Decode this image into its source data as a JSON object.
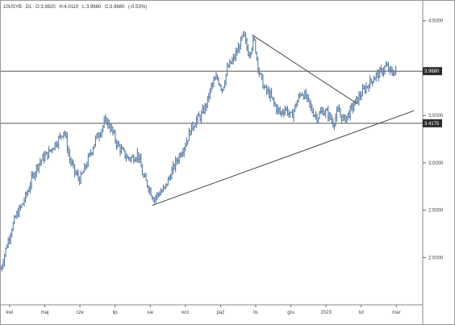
{
  "chart_data": {
    "type": "ohlc",
    "header": {
      "symbol": "10USYB",
      "timeframe": "D1",
      "open": "O:3.9820",
      "high": "H:4.0110",
      "low": "L:3.9680",
      "close": "C:3.9680",
      "change": "(-0.53%)"
    },
    "ylim": [
      1.5,
      4.6
    ],
    "y_ticks": [
      {
        "value": 4.5,
        "label": "4.5000"
      },
      {
        "value": 3.5,
        "label": "3.5000"
      },
      {
        "value": 3.0,
        "label": "3.0000"
      },
      {
        "value": 2.5,
        "label": "2.5000"
      },
      {
        "value": 2.0,
        "label": "2.0000"
      }
    ],
    "x_labels": [
      "kwi",
      "maj",
      "cze",
      "lip",
      "sie",
      "wrz",
      "paź",
      "lis",
      "gru",
      "2023",
      "lut",
      "mar"
    ],
    "x_label_positions": [
      0.5,
      2.5,
      4.5,
      6.5,
      8.5,
      10.5,
      12.5,
      14.5,
      16.5,
      18.5,
      20.5,
      22.5
    ],
    "x_range": [
      0,
      24
    ],
    "horizontal_levels": [
      {
        "value": 3.968,
        "label": "3.9680"
      },
      {
        "value": 3.4175,
        "label": "3.4175"
      }
    ],
    "trendlines": [
      {
        "from": [
          8.6,
          2.55
        ],
        "to": [
          23.5,
          3.55
        ]
      },
      {
        "from": [
          14.3,
          4.35
        ],
        "to": [
          20.3,
          3.62
        ]
      }
    ],
    "series_close": [
      [
        0,
        1.88
      ],
      [
        0.3,
        2.1
      ],
      [
        0.6,
        2.3
      ],
      [
        0.9,
        2.45
      ],
      [
        1.2,
        2.55
      ],
      [
        1.5,
        2.68
      ],
      [
        1.8,
        2.85
      ],
      [
        2.1,
        2.98
      ],
      [
        2.4,
        3.05
      ],
      [
        2.7,
        3.1
      ],
      [
        3.0,
        3.18
      ],
      [
        3.3,
        3.25
      ],
      [
        3.6,
        3.35
      ],
      [
        3.9,
        3.05
      ],
      [
        4.2,
        2.9
      ],
      [
        4.5,
        2.82
      ],
      [
        4.8,
        2.95
      ],
      [
        5.1,
        3.1
      ],
      [
        5.4,
        3.25
      ],
      [
        5.7,
        3.35
      ],
      [
        6.0,
        3.45
      ],
      [
        6.3,
        3.35
      ],
      [
        6.6,
        3.2
      ],
      [
        6.9,
        3.12
      ],
      [
        7.2,
        3.05
      ],
      [
        7.5,
        3.05
      ],
      [
        7.8,
        3.1
      ],
      [
        8.1,
        2.85
      ],
      [
        8.4,
        2.75
      ],
      [
        8.7,
        2.62
      ],
      [
        9.0,
        2.68
      ],
      [
        9.3,
        2.72
      ],
      [
        9.6,
        2.85
      ],
      [
        9.9,
        2.98
      ],
      [
        10.2,
        3.1
      ],
      [
        10.5,
        3.2
      ],
      [
        10.8,
        3.35
      ],
      [
        11.1,
        3.45
      ],
      [
        11.4,
        3.5
      ],
      [
        11.7,
        3.62
      ],
      [
        12.0,
        3.82
      ],
      [
        12.3,
        3.9
      ],
      [
        12.6,
        3.78
      ],
      [
        12.9,
        4.0
      ],
      [
        13.2,
        4.08
      ],
      [
        13.5,
        4.2
      ],
      [
        13.8,
        4.35
      ],
      [
        14.1,
        4.15
      ],
      [
        14.4,
        4.3
      ],
      [
        14.7,
        3.95
      ],
      [
        15.0,
        3.78
      ],
      [
        15.3,
        3.72
      ],
      [
        15.6,
        3.6
      ],
      [
        15.9,
        3.52
      ],
      [
        16.2,
        3.58
      ],
      [
        16.5,
        3.48
      ],
      [
        16.8,
        3.62
      ],
      [
        17.1,
        3.75
      ],
      [
        17.4,
        3.68
      ],
      [
        17.7,
        3.55
      ],
      [
        18.0,
        3.48
      ],
      [
        18.3,
        3.55
      ],
      [
        18.6,
        3.52
      ],
      [
        18.9,
        3.42
      ],
      [
        19.2,
        3.55
      ],
      [
        19.5,
        3.45
      ],
      [
        19.8,
        3.52
      ],
      [
        20.1,
        3.62
      ],
      [
        20.4,
        3.7
      ],
      [
        20.7,
        3.78
      ],
      [
        21.0,
        3.85
      ],
      [
        21.3,
        3.92
      ],
      [
        21.6,
        3.95
      ],
      [
        21.9,
        4.02
      ],
      [
        22.2,
        3.95
      ],
      [
        22.5,
        3.97
      ]
    ],
    "colors": {
      "bars": "#5d7fa6",
      "trendline": "#444444",
      "level_line": "#555555",
      "grid": "#eaeaea",
      "price_box": "#2a2a2a"
    }
  }
}
